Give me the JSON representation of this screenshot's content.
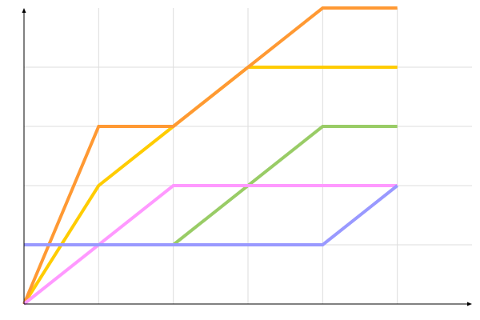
{
  "chart_data": {
    "type": "line",
    "title": "",
    "xlabel": "",
    "ylabel": "",
    "xlim": [
      0,
      6
    ],
    "ylim": [
      0,
      5
    ],
    "grid": true,
    "legend": "none",
    "series": [
      {
        "color": "#ffcc00",
        "points": [
          [
            0,
            0
          ],
          [
            1,
            2
          ],
          [
            2,
            3
          ],
          [
            3,
            4
          ],
          [
            5,
            4
          ]
        ]
      },
      {
        "color": "#ff9933",
        "points": [
          [
            0,
            0
          ],
          [
            1,
            3
          ],
          [
            2,
            3
          ],
          [
            4,
            5
          ],
          [
            5,
            5
          ]
        ]
      },
      {
        "color": "#99cc66",
        "points": [
          [
            2,
            1
          ],
          [
            4,
            3
          ],
          [
            5,
            3
          ]
        ]
      },
      {
        "color": "#ff99ff",
        "points": [
          [
            0,
            0
          ],
          [
            2,
            2
          ],
          [
            5,
            2
          ]
        ]
      },
      {
        "color": "#9999ff",
        "points": [
          [
            0,
            1
          ],
          [
            4,
            1
          ],
          [
            5,
            2
          ]
        ]
      }
    ]
  }
}
